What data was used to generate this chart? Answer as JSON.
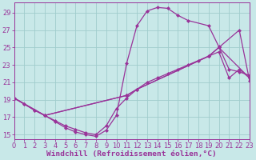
{
  "background_color": "#c8e8e8",
  "grid_color": "#a0cccc",
  "line_color": "#993399",
  "markersize": 2.5,
  "linewidth": 0.9,
  "xlabel": "Windchill (Refroidissement éolien,°C)",
  "xlabel_fontsize": 6.8,
  "tick_fontsize": 6.0,
  "xlim": [
    0,
    23
  ],
  "ylim": [
    14.5,
    30.2
  ],
  "yticks": [
    15,
    17,
    19,
    21,
    23,
    25,
    27,
    29
  ],
  "xticks": [
    0,
    1,
    2,
    3,
    4,
    5,
    6,
    7,
    8,
    9,
    10,
    11,
    12,
    13,
    14,
    15,
    16,
    17,
    18,
    19,
    20,
    21,
    22,
    23
  ],
  "curve_peak_x": [
    0,
    1,
    2,
    3,
    4,
    5,
    6,
    7,
    8,
    9,
    10,
    11,
    12,
    13,
    14,
    15,
    16,
    17,
    19,
    20,
    21,
    22,
    23
  ],
  "curve_peak_y": [
    19.2,
    18.5,
    17.8,
    17.2,
    16.5,
    15.8,
    15.3,
    15.0,
    14.8,
    15.5,
    17.2,
    23.2,
    27.5,
    29.2,
    29.6,
    29.5,
    28.7,
    28.1,
    27.5,
    25.1,
    22.5,
    22.2,
    21.8
  ],
  "curve_low_x": [
    0,
    1,
    2,
    3,
    4,
    5,
    6,
    7,
    8,
    9,
    10,
    11,
    12,
    13,
    14,
    15,
    16,
    17,
    18,
    19,
    20,
    21,
    22,
    23
  ],
  "curve_low_y": [
    19.2,
    18.5,
    17.8,
    17.2,
    16.6,
    16.0,
    15.6,
    15.2,
    15.0,
    16.0,
    18.0,
    19.2,
    20.2,
    21.0,
    21.5,
    22.0,
    22.5,
    23.0,
    23.5,
    24.0,
    24.5,
    21.5,
    22.5,
    21.5
  ],
  "curve_high_x": [
    0,
    3,
    11,
    12,
    19,
    20,
    22,
    23
  ],
  "curve_high_y": [
    19.2,
    17.2,
    19.5,
    20.2,
    24.0,
    25.0,
    27.0,
    21.2
  ],
  "curve_flat_x": [
    0,
    3,
    11,
    12,
    19,
    20,
    23
  ],
  "curve_flat_y": [
    19.2,
    17.2,
    19.5,
    20.2,
    24.0,
    25.0,
    21.5
  ]
}
